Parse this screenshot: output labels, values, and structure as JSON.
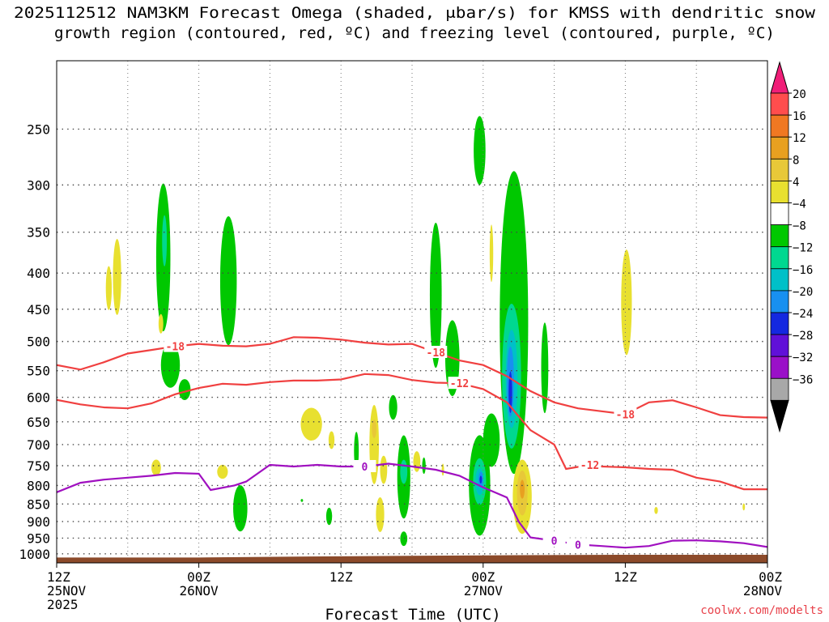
{
  "chart_data": {
    "type": "contour",
    "title_line1": "2025112512 NAM3KM Forecast Omega (shaded, μbar/s) for KMSS with dendritic snow",
    "title_line2": "growth region (contoured, red, ºC) and freezing level (contoured, purple, ºC)",
    "xlabel": "Forecast Time (UTC)",
    "credit": "coolwx.com/modelts",
    "x_ticks": [
      {
        "hour": 0,
        "line1": "12Z",
        "line2": "25NOV",
        "line3": "2025"
      },
      {
        "hour": 12,
        "line1": "00Z",
        "line2": "26NOV",
        "line3": ""
      },
      {
        "hour": 24,
        "line1": "12Z",
        "line2": "",
        "line3": ""
      },
      {
        "hour": 36,
        "line1": "00Z",
        "line2": "27NOV",
        "line3": ""
      },
      {
        "hour": 48,
        "line1": "12Z",
        "line2": "",
        "line3": ""
      },
      {
        "hour": 60,
        "line1": "00Z",
        "line2": "28NOV",
        "line3": ""
      }
    ],
    "x_range_hours": [
      0,
      60
    ],
    "y_axis": "pressure (hPa), log scale, inverted",
    "y_ticks": [
      250,
      300,
      350,
      400,
      450,
      500,
      550,
      600,
      650,
      700,
      750,
      800,
      850,
      900,
      950,
      1000
    ],
    "y_range_hpa": [
      200,
      1030
    ],
    "grid": true,
    "colorbar": {
      "position": "right",
      "labels": [
        "20",
        "16",
        "12",
        "8",
        "4",
        "−4",
        "−8",
        "−12",
        "−16",
        "−20",
        "−24",
        "−28",
        "−32",
        "−36"
      ],
      "colors": [
        "#ff4d4d",
        "#f07822",
        "#e8a020",
        "#e8c838",
        "#e8e030",
        "#ffffff",
        "#00c800",
        "#00d890",
        "#00c0c8",
        "#1890f0",
        "#1428e0",
        "#6010d8",
        "#9a10c8",
        "#a8a8a8"
      ],
      "top_arrow": "#f01e78",
      "bottom_arrow": "#000000"
    },
    "isotherms_dgz_C": [
      {
        "label": "-18",
        "color": "#f04040",
        "points": [
          [
            0,
            540
          ],
          [
            2,
            548
          ],
          [
            4,
            535
          ],
          [
            6,
            520
          ],
          [
            8,
            514
          ],
          [
            10,
            508
          ],
          [
            12,
            504
          ],
          [
            14,
            507
          ],
          [
            16,
            508
          ],
          [
            18,
            504
          ],
          [
            20,
            493
          ],
          [
            22,
            494
          ],
          [
            24,
            497
          ],
          [
            26,
            502
          ],
          [
            28,
            505
          ],
          [
            30,
            504
          ],
          [
            32,
            518
          ],
          [
            34,
            532
          ],
          [
            36,
            540
          ],
          [
            38,
            560
          ],
          [
            40,
            588
          ],
          [
            42,
            610
          ],
          [
            44,
            622
          ],
          [
            46,
            628
          ],
          [
            48,
            634
          ],
          [
            50,
            610
          ],
          [
            52,
            606
          ],
          [
            54,
            620
          ],
          [
            56,
            636
          ],
          [
            58,
            640
          ],
          [
            60,
            641
          ]
        ]
      },
      {
        "label": "-12",
        "color": "#f04040",
        "points": [
          [
            0,
            605
          ],
          [
            2,
            614
          ],
          [
            4,
            620
          ],
          [
            6,
            622
          ],
          [
            8,
            612
          ],
          [
            10,
            594
          ],
          [
            12,
            582
          ],
          [
            14,
            574
          ],
          [
            16,
            576
          ],
          [
            18,
            571
          ],
          [
            20,
            568
          ],
          [
            22,
            568
          ],
          [
            24,
            566
          ],
          [
            26,
            556
          ],
          [
            28,
            558
          ],
          [
            30,
            567
          ],
          [
            32,
            572
          ],
          [
            34,
            573
          ],
          [
            36,
            584
          ],
          [
            38,
            610
          ],
          [
            40,
            668
          ],
          [
            42,
            700
          ],
          [
            43,
            758
          ],
          [
            45,
            748
          ],
          [
            46,
            752
          ],
          [
            48,
            754
          ],
          [
            50,
            758
          ],
          [
            52,
            760
          ],
          [
            54,
            780
          ],
          [
            56,
            790
          ],
          [
            58,
            810
          ],
          [
            60,
            810
          ]
        ]
      },
      {
        "label": "0",
        "color": "#a010c0",
        "points": [
          [
            0,
            818
          ],
          [
            2,
            793
          ],
          [
            4,
            785
          ],
          [
            6,
            780
          ],
          [
            8,
            775
          ],
          [
            10,
            768
          ],
          [
            12,
            770
          ],
          [
            13,
            812
          ],
          [
            15,
            800
          ],
          [
            16,
            790
          ],
          [
            18,
            748
          ],
          [
            20,
            752
          ],
          [
            22,
            748
          ],
          [
            24,
            752
          ],
          [
            26,
            752
          ],
          [
            28,
            745
          ],
          [
            30,
            752
          ],
          [
            32,
            760
          ],
          [
            34,
            775
          ],
          [
            36,
            805
          ],
          [
            38,
            832
          ],
          [
            39,
            900
          ],
          [
            40,
            948
          ],
          [
            42,
            958
          ],
          [
            44,
            970
          ],
          [
            46,
            975
          ],
          [
            48,
            980
          ],
          [
            50,
            975
          ],
          [
            52,
            958
          ],
          [
            54,
            957
          ],
          [
            56,
            960
          ],
          [
            58,
            966
          ],
          [
            60,
            978
          ]
        ]
      }
    ],
    "omega_blobs_microbar_per_s": [
      {
        "t": 5.1,
        "p": 405,
        "tw": 0.35,
        "ph": 100,
        "value": 4
      },
      {
        "t": 9.0,
        "p": 380,
        "tw": 0.6,
        "ph": 180,
        "value": -4
      },
      {
        "t": 9.1,
        "p": 360,
        "tw": 0.2,
        "ph": 60,
        "value": -8
      },
      {
        "t": 9.6,
        "p": 540,
        "tw": 0.8,
        "ph": 80,
        "value": -4
      },
      {
        "t": 10.8,
        "p": 585,
        "tw": 0.5,
        "ph": 40,
        "value": -4
      },
      {
        "t": 14.5,
        "p": 410,
        "tw": 0.7,
        "ph": 170,
        "value": -4
      },
      {
        "t": 8.8,
        "p": 472,
        "tw": 0.2,
        "ph": 30,
        "value": 4
      },
      {
        "t": 15.5,
        "p": 862,
        "tw": 0.6,
        "ph": 130,
        "value": -4
      },
      {
        "t": 14.0,
        "p": 765,
        "tw": 0.45,
        "ph": 35,
        "value": 4
      },
      {
        "t": 21.5,
        "p": 655,
        "tw": 0.9,
        "ph": 70,
        "value": 4
      },
      {
        "t": 20.7,
        "p": 840,
        "tw": 0.1,
        "ph": 8,
        "value": -4
      },
      {
        "t": 23.2,
        "p": 690,
        "tw": 0.25,
        "ph": 40,
        "value": 4
      },
      {
        "t": 23.0,
        "p": 885,
        "tw": 0.25,
        "ph": 50,
        "value": -4
      },
      {
        "t": 25.3,
        "p": 715,
        "tw": 0.2,
        "ph": 90,
        "value": -4
      },
      {
        "t": 26.8,
        "p": 700,
        "tw": 0.4,
        "ph": 180,
        "value": 4
      },
      {
        "t": 26.8,
        "p": 665,
        "tw": 0.2,
        "ph": 40,
        "value": 8
      },
      {
        "t": 27.3,
        "p": 880,
        "tw": 0.35,
        "ph": 100,
        "value": 4
      },
      {
        "t": 27.6,
        "p": 760,
        "tw": 0.3,
        "ph": 70,
        "value": 4
      },
      {
        "t": 28.4,
        "p": 620,
        "tw": 0.35,
        "ph": 50,
        "value": -4
      },
      {
        "t": 29.3,
        "p": 778,
        "tw": 0.55,
        "ph": 210,
        "value": -4
      },
      {
        "t": 29.3,
        "p": 765,
        "tw": 0.3,
        "ph": 60,
        "value": -8
      },
      {
        "t": 29.3,
        "p": 952,
        "tw": 0.3,
        "ph": 45,
        "value": -4
      },
      {
        "t": 30.4,
        "p": 740,
        "tw": 0.3,
        "ph": 50,
        "value": 4
      },
      {
        "t": 31.0,
        "p": 750,
        "tw": 0.15,
        "ph": 40,
        "value": -4
      },
      {
        "t": 32.0,
        "p": 430,
        "tw": 0.5,
        "ph": 200,
        "value": -4
      },
      {
        "t": 33.4,
        "p": 528,
        "tw": 0.6,
        "ph": 130,
        "value": -4
      },
      {
        "t": 32.6,
        "p": 760,
        "tw": 0.1,
        "ph": 30,
        "value": 4
      },
      {
        "t": 35.7,
        "p": 268,
        "tw": 0.5,
        "ph": 60,
        "value": -4
      },
      {
        "t": 35.7,
        "p": 800,
        "tw": 0.9,
        "ph": 260,
        "value": -4
      },
      {
        "t": 35.7,
        "p": 790,
        "tw": 0.55,
        "ph": 120,
        "value": -8
      },
      {
        "t": 35.7,
        "p": 790,
        "tw": 0.35,
        "ph": 70,
        "value": -12
      },
      {
        "t": 35.8,
        "p": 785,
        "tw": 0.2,
        "ph": 40,
        "value": -16
      },
      {
        "t": 35.8,
        "p": 785,
        "tw": 0.1,
        "ph": 20,
        "value": -20
      },
      {
        "t": 36.7,
        "p": 690,
        "tw": 0.7,
        "ph": 120,
        "value": -4
      },
      {
        "t": 36.7,
        "p": 375,
        "tw": 0.15,
        "ph": 70,
        "value": 4
      },
      {
        "t": 38.6,
        "p": 470,
        "tw": 1.2,
        "ph": 430,
        "value": -4
      },
      {
        "t": 38.4,
        "p": 560,
        "tw": 0.8,
        "ph": 260,
        "value": -8
      },
      {
        "t": 38.4,
        "p": 565,
        "tw": 0.5,
        "ph": 180,
        "value": -12
      },
      {
        "t": 38.3,
        "p": 570,
        "tw": 0.3,
        "ph": 130,
        "value": -16
      },
      {
        "t": 38.3,
        "p": 590,
        "tw": 0.15,
        "ph": 80,
        "value": -20
      },
      {
        "t": 41.2,
        "p": 545,
        "tw": 0.3,
        "ph": 160,
        "value": -4
      },
      {
        "t": 39.3,
        "p": 830,
        "tw": 0.8,
        "ph": 200,
        "value": 4
      },
      {
        "t": 39.3,
        "p": 820,
        "tw": 0.45,
        "ph": 120,
        "value": 8
      },
      {
        "t": 39.3,
        "p": 810,
        "tw": 0.2,
        "ph": 50,
        "value": 12
      },
      {
        "t": 48.1,
        "p": 440,
        "tw": 0.45,
        "ph": 150,
        "value": 4
      },
      {
        "t": 50.6,
        "p": 868,
        "tw": 0.15,
        "ph": 20,
        "value": 4
      },
      {
        "t": 58.0,
        "p": 858,
        "tw": 0.1,
        "ph": 20,
        "value": 4
      },
      {
        "t": 8.4,
        "p": 755,
        "tw": 0.4,
        "ph": 40,
        "value": 4
      },
      {
        "t": 4.4,
        "p": 420,
        "tw": 0.25,
        "ph": 60,
        "value": 4
      }
    ],
    "terrain_color": "#8c4a2a"
  }
}
